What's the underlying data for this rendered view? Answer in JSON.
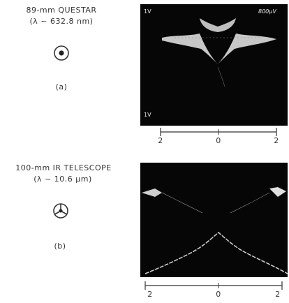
{
  "figure_a": {
    "title": "89-mm QUESTAR",
    "wavelength": "(λ ~ 632.8 nm)",
    "label": "(a)",
    "scope_top_left": "1V",
    "scope_top_right": "800μV",
    "scope_bottom_left": "1V",
    "axis_ticks": [
      "2",
      "0",
      "2"
    ]
  },
  "figure_b": {
    "title": "100-mm IR TELESCOPE",
    "wavelength": "(λ ~ 10.6 μm)",
    "label": "(b)",
    "axis_ticks": [
      "2",
      "0",
      "2"
    ]
  }
}
